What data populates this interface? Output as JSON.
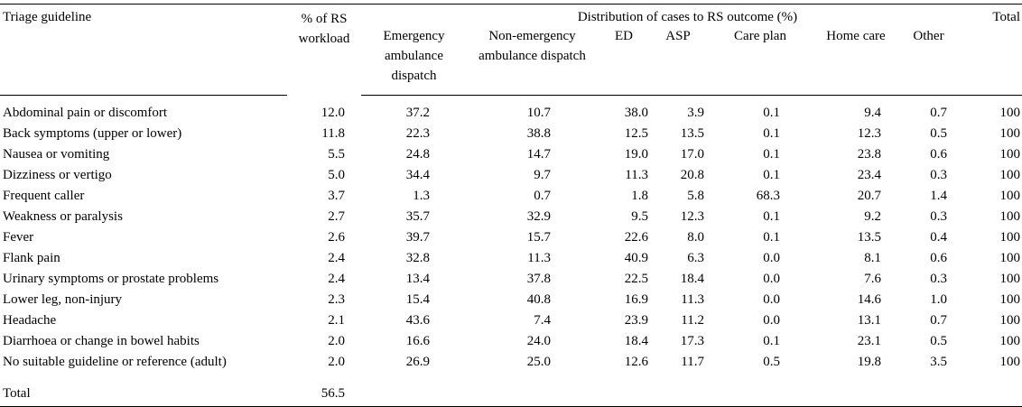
{
  "headers": {
    "guideline": "Triage guideline",
    "workload": "% of RS workload",
    "distribution": "Distribution of cases to RS outcome (%)",
    "total": "Total",
    "emergency": "Emergency ambulance dispatch",
    "non_emergency": "Non-emergency ambulance dispatch",
    "ed": "ED",
    "asp": "ASP",
    "care_plan": "Care plan",
    "home_care": "Home care",
    "other": "Other"
  },
  "rows": [
    {
      "guideline": "Abdominal pain or discomfort",
      "workload": "12.0",
      "emergency": "37.2",
      "non_emergency": "10.7",
      "ed": "38.0",
      "asp": "3.9",
      "care_plan": "0.1",
      "home_care": "9.4",
      "other": "0.7",
      "total": "100"
    },
    {
      "guideline": "Back symptoms (upper or lower)",
      "workload": "11.8",
      "emergency": "22.3",
      "non_emergency": "38.8",
      "ed": "12.5",
      "asp": "13.5",
      "care_plan": "0.1",
      "home_care": "12.3",
      "other": "0.5",
      "total": "100"
    },
    {
      "guideline": "Nausea or vomiting",
      "workload": "5.5",
      "emergency": "24.8",
      "non_emergency": "14.7",
      "ed": "19.0",
      "asp": "17.0",
      "care_plan": "0.1",
      "home_care": "23.8",
      "other": "0.6",
      "total": "100"
    },
    {
      "guideline": "Dizziness or vertigo",
      "workload": "5.0",
      "emergency": "34.4",
      "non_emergency": "9.7",
      "ed": "11.3",
      "asp": "20.8",
      "care_plan": "0.1",
      "home_care": "23.4",
      "other": "0.3",
      "total": "100"
    },
    {
      "guideline": "Frequent caller",
      "workload": "3.7",
      "emergency": "1.3",
      "non_emergency": "0.7",
      "ed": "1.8",
      "asp": "5.8",
      "care_plan": "68.3",
      "home_care": "20.7",
      "other": "1.4",
      "total": "100"
    },
    {
      "guideline": "Weakness or paralysis",
      "workload": "2.7",
      "emergency": "35.7",
      "non_emergency": "32.9",
      "ed": "9.5",
      "asp": "12.3",
      "care_plan": "0.1",
      "home_care": "9.2",
      "other": "0.3",
      "total": "100"
    },
    {
      "guideline": "Fever",
      "workload": "2.6",
      "emergency": "39.7",
      "non_emergency": "15.7",
      "ed": "22.6",
      "asp": "8.0",
      "care_plan": "0.1",
      "home_care": "13.5",
      "other": "0.4",
      "total": "100"
    },
    {
      "guideline": "Flank pain",
      "workload": "2.4",
      "emergency": "32.8",
      "non_emergency": "11.3",
      "ed": "40.9",
      "asp": "6.3",
      "care_plan": "0.0",
      "home_care": "8.1",
      "other": "0.6",
      "total": "100"
    },
    {
      "guideline": "Urinary symptoms or prostate problems",
      "workload": "2.4",
      "emergency": "13.4",
      "non_emergency": "37.8",
      "ed": "22.5",
      "asp": "18.4",
      "care_plan": "0.0",
      "home_care": "7.6",
      "other": "0.3",
      "total": "100"
    },
    {
      "guideline": "Lower leg, non-injury",
      "workload": "2.3",
      "emergency": "15.4",
      "non_emergency": "40.8",
      "ed": "16.9",
      "asp": "11.3",
      "care_plan": "0.0",
      "home_care": "14.6",
      "other": "1.0",
      "total": "100"
    },
    {
      "guideline": "Headache",
      "workload": "2.1",
      "emergency": "43.6",
      "non_emergency": "7.4",
      "ed": "23.9",
      "asp": "11.2",
      "care_plan": "0.0",
      "home_care": "13.1",
      "other": "0.7",
      "total": "100"
    },
    {
      "guideline": "Diarrhoea or change in bowel habits",
      "workload": "2.0",
      "emergency": "16.6",
      "non_emergency": "24.0",
      "ed": "18.4",
      "asp": "17.3",
      "care_plan": "0.1",
      "home_care": "23.1",
      "other": "0.5",
      "total": "100"
    },
    {
      "guideline": "No suitable guideline or reference (adult)",
      "workload": "2.0",
      "emergency": "26.9",
      "non_emergency": "25.0",
      "ed": "12.6",
      "asp": "11.7",
      "care_plan": "0.5",
      "home_care": "19.8",
      "other": "3.5",
      "total": "100"
    }
  ],
  "total_row": {
    "label": "Total",
    "workload": "56.5"
  }
}
